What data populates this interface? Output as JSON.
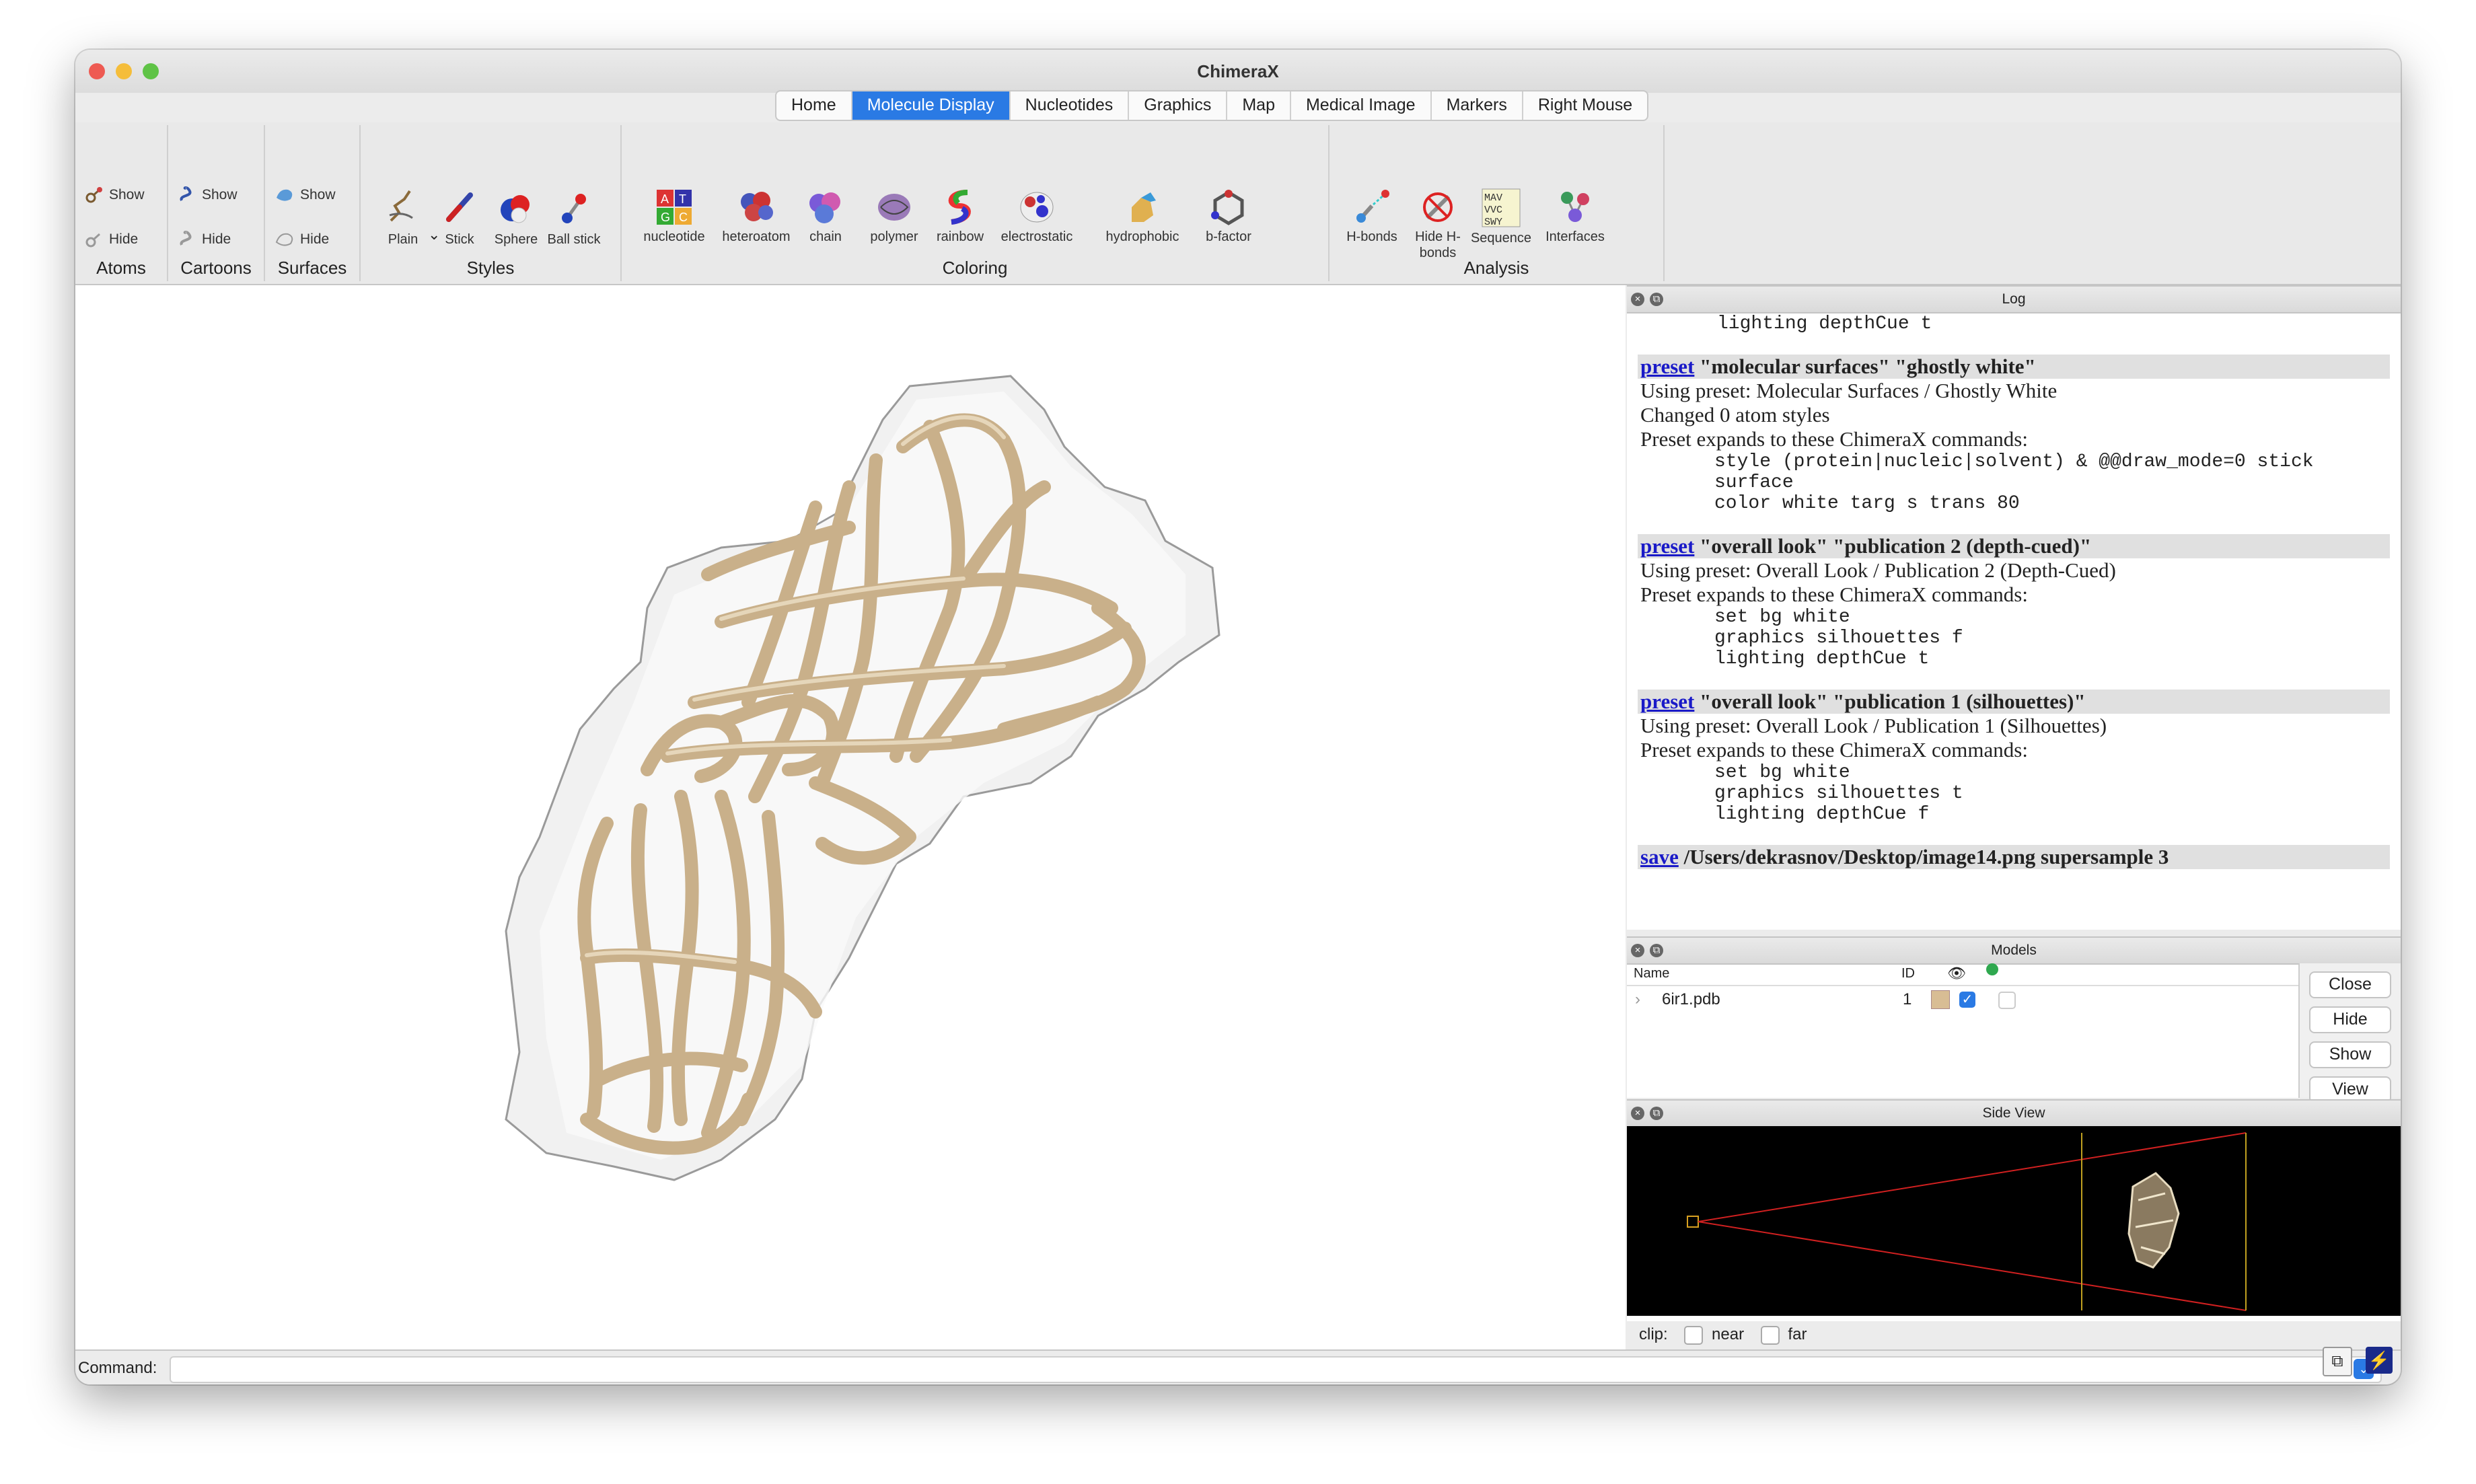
{
  "window": {
    "title": "ChimeraX"
  },
  "tabs": [
    {
      "label": "Home"
    },
    {
      "label": "Molecule Display"
    },
    {
      "label": "Nucleotides"
    },
    {
      "label": "Graphics"
    },
    {
      "label": "Map"
    },
    {
      "label": "Medical Image"
    },
    {
      "label": "Markers"
    },
    {
      "label": "Right Mouse"
    }
  ],
  "toolbar": {
    "atoms": {
      "show": "Show",
      "hide": "Hide",
      "label": "Atoms"
    },
    "cartoons": {
      "show": "Show",
      "hide": "Hide",
      "label": "Cartoons"
    },
    "surfaces": {
      "show": "Show",
      "hide": "Hide",
      "label": "Surfaces"
    },
    "styles": {
      "label": "Styles",
      "plain": "Plain",
      "stick": "Stick",
      "sphere": "Sphere",
      "ball_stick": "Ball stick"
    },
    "coloring": {
      "label": "Coloring",
      "nucleotide": "nucleotide",
      "heteroatom": "heteroatom",
      "chain": "chain",
      "polymer": "polymer",
      "rainbow": "rainbow",
      "electrostatic": "electrostatic",
      "hydrophobic": "hydrophobic",
      "bfactor": "b-factor",
      "nucleotide_letters": [
        "A",
        "T",
        "G",
        "C"
      ]
    },
    "analysis": {
      "label": "Analysis",
      "hbonds": "H-bonds",
      "hide_hbonds": "Hide H-bonds",
      "sequence": "Sequence",
      "interfaces": "Interfaces",
      "sequence_letters": [
        "MAV",
        "VVC",
        "SWY"
      ]
    }
  },
  "log": {
    "title": "Log",
    "top_line": "lighting depthCue t",
    "entries": [
      {
        "link": "preset",
        "cmd": " \"molecular surfaces\" \"ghostly white\"",
        "lines": [
          "Using preset: Molecular Surfaces / Ghostly White",
          "Changed 0 atom styles",
          "Preset expands to these ChimeraX commands:"
        ],
        "code": [
          "style (protein|nucleic|solvent) & @@draw_mode=0 stick",
          "surface",
          "color white targ s trans 80"
        ]
      },
      {
        "link": "preset",
        "cmd": " \"overall look\" \"publication 2 (depth-cued)\"",
        "lines": [
          "Using preset: Overall Look / Publication 2 (Depth-Cued)",
          "Preset expands to these ChimeraX commands:"
        ],
        "code": [
          "set bg white",
          "graphics silhouettes f",
          "lighting depthCue t"
        ]
      },
      {
        "link": "preset",
        "cmd": " \"overall look\" \"publication 1 (silhouettes)\"",
        "lines": [
          "Using preset: Overall Look / Publication 1 (Silhouettes)",
          "Preset expands to these ChimeraX commands:"
        ],
        "code": [
          "set bg white",
          "graphics silhouettes t",
          "lighting depthCue f"
        ]
      },
      {
        "link": "save",
        "cmd": " /Users/dekrasnov/Desktop/image14.png supersample 3",
        "lines": [],
        "code": []
      }
    ]
  },
  "models": {
    "title": "Models",
    "columns": {
      "name": "Name",
      "id": "ID"
    },
    "rows": [
      {
        "name": "6ir1.pdb",
        "id": "1",
        "color": "#d8bd94",
        "shown": true
      }
    ],
    "buttons": {
      "close": "Close",
      "hide": "Hide",
      "show": "Show",
      "view": "View"
    }
  },
  "side_view": {
    "title": "Side View",
    "clip_label": "clip:",
    "near": "near",
    "far": "far"
  },
  "command": {
    "label": "Command:",
    "value": ""
  },
  "colors": {
    "accent": "#2a7ae4",
    "cartoon": "#ddc9a6",
    "link": "#1a1ac8"
  }
}
